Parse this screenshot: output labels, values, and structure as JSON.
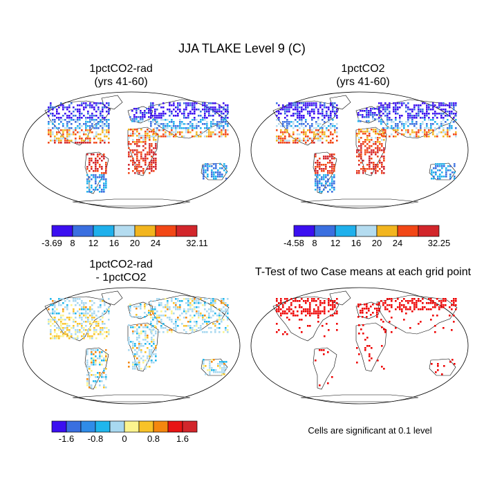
{
  "title": "JJA TLAKE Level 9 (C)",
  "panels": [
    {
      "id": "p1",
      "title_lines": [
        "1pctCO2-rad",
        "(yrs 41-60)"
      ],
      "colorbar": {
        "colors": [
          "#3b0ff0",
          "#3a6fe0",
          "#1fb0ec",
          "#b4dcf0",
          "#f2b51f",
          "#f24716",
          "#d2262b"
        ],
        "tick_labels": [
          "-3.69",
          "8",
          "12",
          "16",
          "20",
          "24",
          "32.11"
        ]
      }
    },
    {
      "id": "p2",
      "title_lines": [
        "1pctCO2",
        "(yrs 41-60)"
      ],
      "colorbar": {
        "colors": [
          "#3b0ff0",
          "#3a6fe0",
          "#1fb0ec",
          "#b4dcf0",
          "#f2b51f",
          "#f24716",
          "#d2262b"
        ],
        "tick_labels": [
          "-4.58",
          "8",
          "12",
          "16",
          "20",
          "24",
          "32.25"
        ]
      }
    },
    {
      "id": "p3",
      "title_lines": [
        "1pctCO2-rad",
        "- 1pctCO2"
      ],
      "colorbar": {
        "colors": [
          "#3b0ff0",
          "#3a6fe0",
          "#2f8ce8",
          "#1fb6ec",
          "#a8d8f0",
          "#fbf48e",
          "#f8c228",
          "#f4870f",
          "#e81414",
          "#d2262b"
        ],
        "tick_labels": [
          "-1.6",
          "-0.8",
          "0",
          "0.8",
          "1.6"
        ]
      }
    },
    {
      "id": "p4",
      "title_lines": [
        "T-Test of two Case means at each grid point"
      ],
      "note": "Cells are significant at 0.1 level",
      "sig_color": "#ee0000"
    }
  ]
}
